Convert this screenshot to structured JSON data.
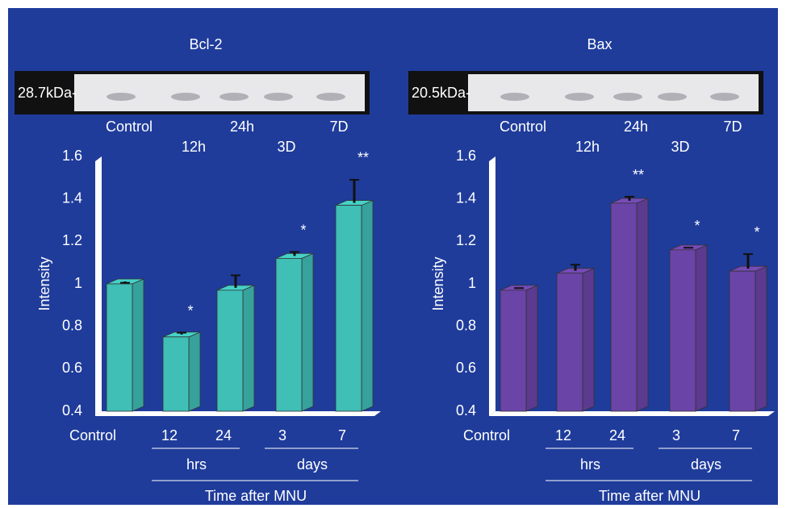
{
  "chart_data": [
    {
      "type": "bar",
      "title": "Bcl-2",
      "blot_label": "28.7kDa-",
      "lanes": [
        "Control",
        "12h",
        "24h",
        "3D",
        "7D"
      ],
      "categories": [
        "Control",
        "12",
        "24",
        "3",
        "7"
      ],
      "values": [
        1.0,
        0.75,
        0.97,
        1.12,
        1.37
      ],
      "errors": [
        0.005,
        0.02,
        0.07,
        0.03,
        0.12
      ],
      "significance": [
        null,
        "*",
        null,
        "*",
        "**"
      ],
      "group_labels": [
        "hrs",
        "days"
      ],
      "x_label": "Time after MNU",
      "y_label": "Intensity",
      "color": "#3fbfb6",
      "ylim": [
        0.4,
        1.6
      ],
      "yticks": [
        0.4,
        0.6,
        0.8,
        1,
        1.2,
        1.4,
        1.6
      ]
    },
    {
      "type": "bar",
      "title": "Bax",
      "blot_label": "20.5kDa-",
      "lanes": [
        "Control",
        "12h",
        "24h",
        "3D",
        "7D"
      ],
      "categories": [
        "Control",
        "12",
        "24",
        "3",
        "7"
      ],
      "values": [
        0.97,
        1.05,
        1.38,
        1.16,
        1.06
      ],
      "errors": [
        0.01,
        0.04,
        0.03,
        0.01,
        0.08
      ],
      "significance": [
        null,
        null,
        "**",
        "*",
        "*"
      ],
      "group_labels": [
        "hrs",
        "days"
      ],
      "x_label": "Time after MNU",
      "y_label": "Intensity",
      "color": "#6b44a8",
      "ylim": [
        0.4,
        1.6
      ],
      "yticks": [
        0.4,
        0.6,
        0.8,
        1,
        1.2,
        1.4,
        1.6
      ]
    }
  ]
}
